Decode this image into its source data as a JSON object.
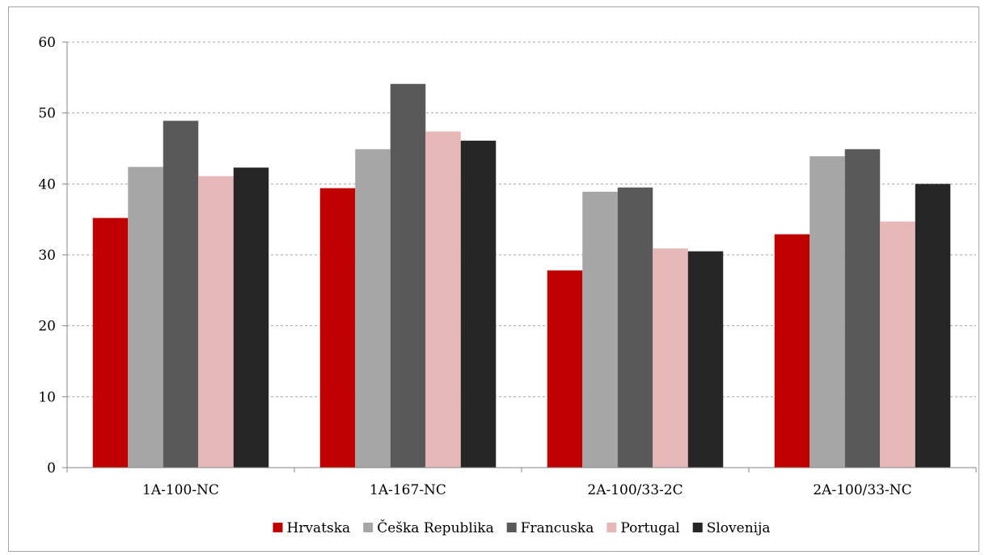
{
  "chart_data": {
    "type": "bar",
    "title": "",
    "xlabel": "",
    "ylabel": "",
    "categories": [
      "1A-100-NC",
      "1A-167-NC",
      "2A-100/33-2C",
      "2A-100/33-NC"
    ],
    "series": [
      {
        "name": "Hrvatska",
        "color": "#c00000",
        "values": [
          35.2,
          39.4,
          27.8,
          32.9
        ]
      },
      {
        "name": "Češka Republika",
        "color": "#a6a6a6",
        "values": [
          42.4,
          44.9,
          38.9,
          43.9
        ]
      },
      {
        "name": "Francuska",
        "color": "#595959",
        "values": [
          48.9,
          54.1,
          39.5,
          44.9
        ]
      },
      {
        "name": "Portugal",
        "color": "#e6b9b8",
        "values": [
          41.1,
          47.4,
          30.9,
          34.7
        ]
      },
      {
        "name": "Slovenija",
        "color": "#262626",
        "values": [
          42.3,
          46.1,
          30.5,
          40.0
        ]
      }
    ],
    "ylim": [
      0,
      60
    ],
    "yticks": [
      0,
      10,
      20,
      30,
      40,
      50,
      60
    ],
    "grid": true,
    "legend_position": "bottom"
  }
}
